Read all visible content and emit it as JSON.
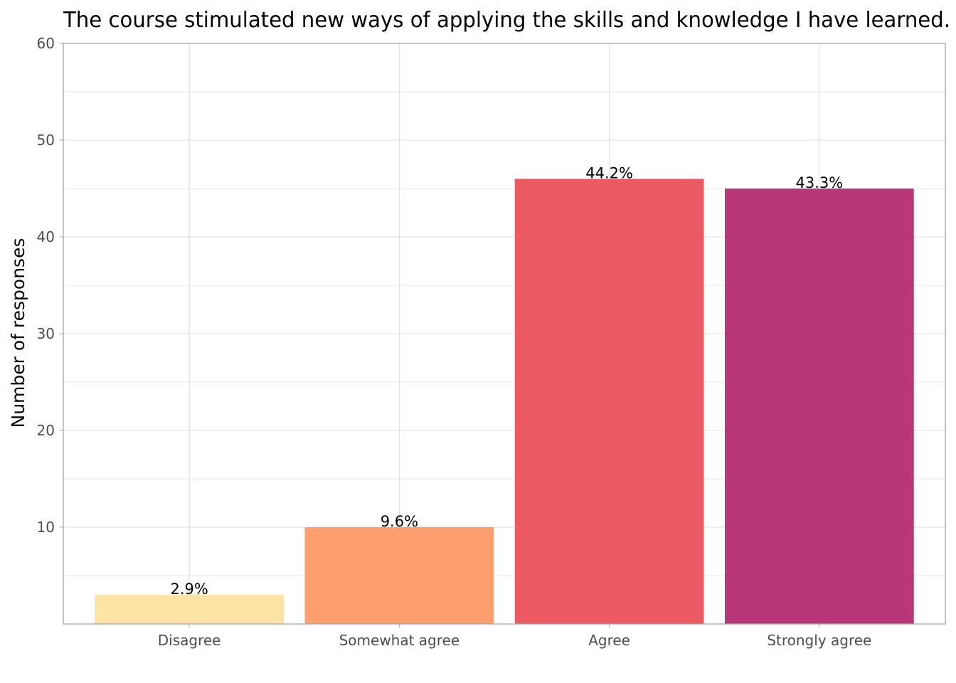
{
  "chart_data": {
    "type": "bar",
    "title": "The course stimulated new ways of applying the skills and knowledge I have learned.",
    "xlabel": "",
    "ylabel": "Number of responses",
    "categories": [
      "Disagree",
      "Somewhat agree",
      "Agree",
      "Strongly agree"
    ],
    "values": [
      3,
      10,
      46,
      45
    ],
    "data_labels": [
      "2.9%",
      "9.6%",
      "44.2%",
      "43.3%"
    ],
    "colors": [
      "#fde4a5",
      "#fe9f6d",
      "#eb5a61",
      "#b73779"
    ],
    "ylim": [
      0,
      60
    ],
    "yticks": [
      10,
      20,
      30,
      40,
      50,
      60
    ],
    "ytick_labels": [
      "10",
      "20",
      "30",
      "40",
      "50",
      "60"
    ],
    "grid": true,
    "legend": "none"
  }
}
